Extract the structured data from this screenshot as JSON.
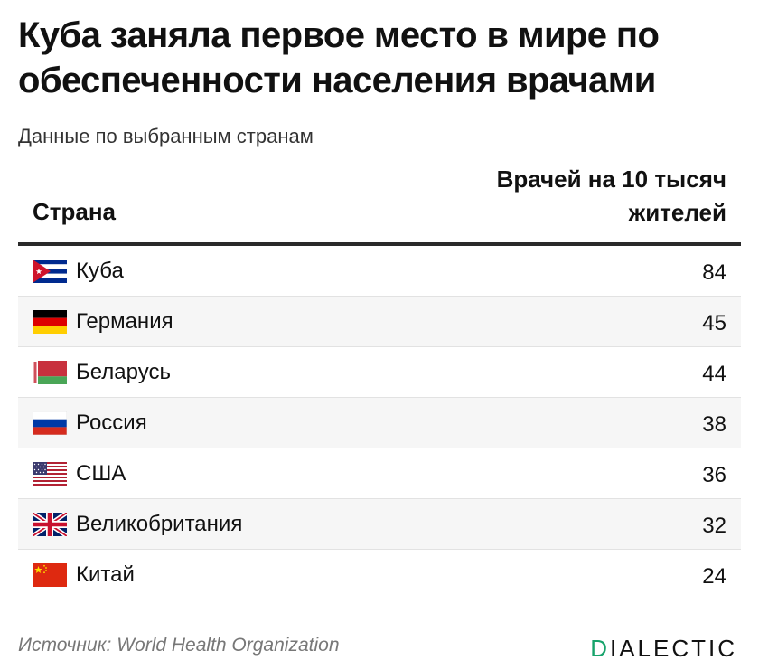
{
  "title": "Куба заняла первое место в мире по обеспеченности населения врачами",
  "subtitle": "Данные по выбранным странам",
  "table": {
    "col_country": "Страна",
    "col_value": "Врачей на 10 тысяч жителей",
    "rows": [
      {
        "country": "Куба",
        "value": "84",
        "flag": "cuba-flag-icon"
      },
      {
        "country": "Германия",
        "value": "45",
        "flag": "germany-flag-icon"
      },
      {
        "country": "Беларусь",
        "value": "44",
        "flag": "belarus-flag-icon"
      },
      {
        "country": "Россия",
        "value": "38",
        "flag": "russia-flag-icon"
      },
      {
        "country": "США",
        "value": "36",
        "flag": "usa-flag-icon"
      },
      {
        "country": "Великобритания",
        "value": "32",
        "flag": "uk-flag-icon"
      },
      {
        "country": "Китай",
        "value": "24",
        "flag": "china-flag-icon"
      }
    ]
  },
  "chart_data": {
    "type": "table",
    "title": "Куба заняла первое место в мире по обеспеченности населения врачами",
    "subtitle": "Данные по выбранным странам",
    "columns": [
      "Страна",
      "Врачей на 10 тысяч жителей"
    ],
    "categories": [
      "Куба",
      "Германия",
      "Беларусь",
      "Россия",
      "США",
      "Великобритания",
      "Китай"
    ],
    "values": [
      84,
      45,
      44,
      38,
      36,
      32,
      24
    ]
  },
  "footer": {
    "source_label": "Источник:",
    "source_name": "World Health Organization",
    "logo_first": "D",
    "logo_rest": "IALECTIC"
  },
  "colors": {
    "accent": "#17a36b",
    "header_rule": "#2a2a2a",
    "row_alt": "#f6f6f6"
  }
}
